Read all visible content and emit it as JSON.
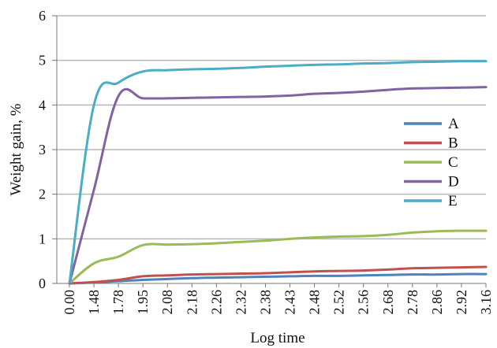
{
  "chart_data": {
    "type": "line",
    "xlabel": "Log time",
    "ylabel": "Weight gain, %",
    "categories": [
      "0.00",
      "1.48",
      "1.78",
      "1.95",
      "2.08",
      "2.18",
      "2.26",
      "2.32",
      "2.38",
      "2.43",
      "2.48",
      "2.52",
      "2.56",
      "2.68",
      "2.78",
      "2.86",
      "2.92",
      "3.16"
    ],
    "ylim": [
      0,
      6
    ],
    "yticks": [
      "0",
      "1",
      "2",
      "3",
      "4",
      "5",
      "6"
    ],
    "grid": "horizontal",
    "legend_position": "right",
    "series": [
      {
        "name": "A",
        "color": "#4f81bd",
        "values": [
          0,
          0.02,
          0.05,
          0.08,
          0.1,
          0.12,
          0.13,
          0.14,
          0.15,
          0.16,
          0.17,
          0.17,
          0.18,
          0.19,
          0.2,
          0.2,
          0.21,
          0.21
        ]
      },
      {
        "name": "B",
        "color": "#c0504d",
        "values": [
          0,
          0.03,
          0.08,
          0.16,
          0.18,
          0.2,
          0.21,
          0.22,
          0.23,
          0.25,
          0.27,
          0.28,
          0.29,
          0.31,
          0.34,
          0.35,
          0.36,
          0.37
        ]
      },
      {
        "name": "C",
        "color": "#9bbb59",
        "values": [
          0,
          0.45,
          0.6,
          0.86,
          0.87,
          0.88,
          0.9,
          0.93,
          0.96,
          1.0,
          1.03,
          1.05,
          1.06,
          1.09,
          1.14,
          1.17,
          1.18,
          1.18
        ]
      },
      {
        "name": "D",
        "color": "#8064a2",
        "values": [
          0,
          2.1,
          4.2,
          4.15,
          4.15,
          4.16,
          4.17,
          4.18,
          4.19,
          4.21,
          4.25,
          4.27,
          4.3,
          4.34,
          4.37,
          4.38,
          4.39,
          4.4
        ]
      },
      {
        "name": "E",
        "color": "#4bacc6",
        "values": [
          0,
          4.0,
          4.5,
          4.75,
          4.78,
          4.8,
          4.81,
          4.83,
          4.86,
          4.88,
          4.9,
          4.91,
          4.93,
          4.94,
          4.96,
          4.97,
          4.98,
          4.98
        ]
      }
    ]
  }
}
